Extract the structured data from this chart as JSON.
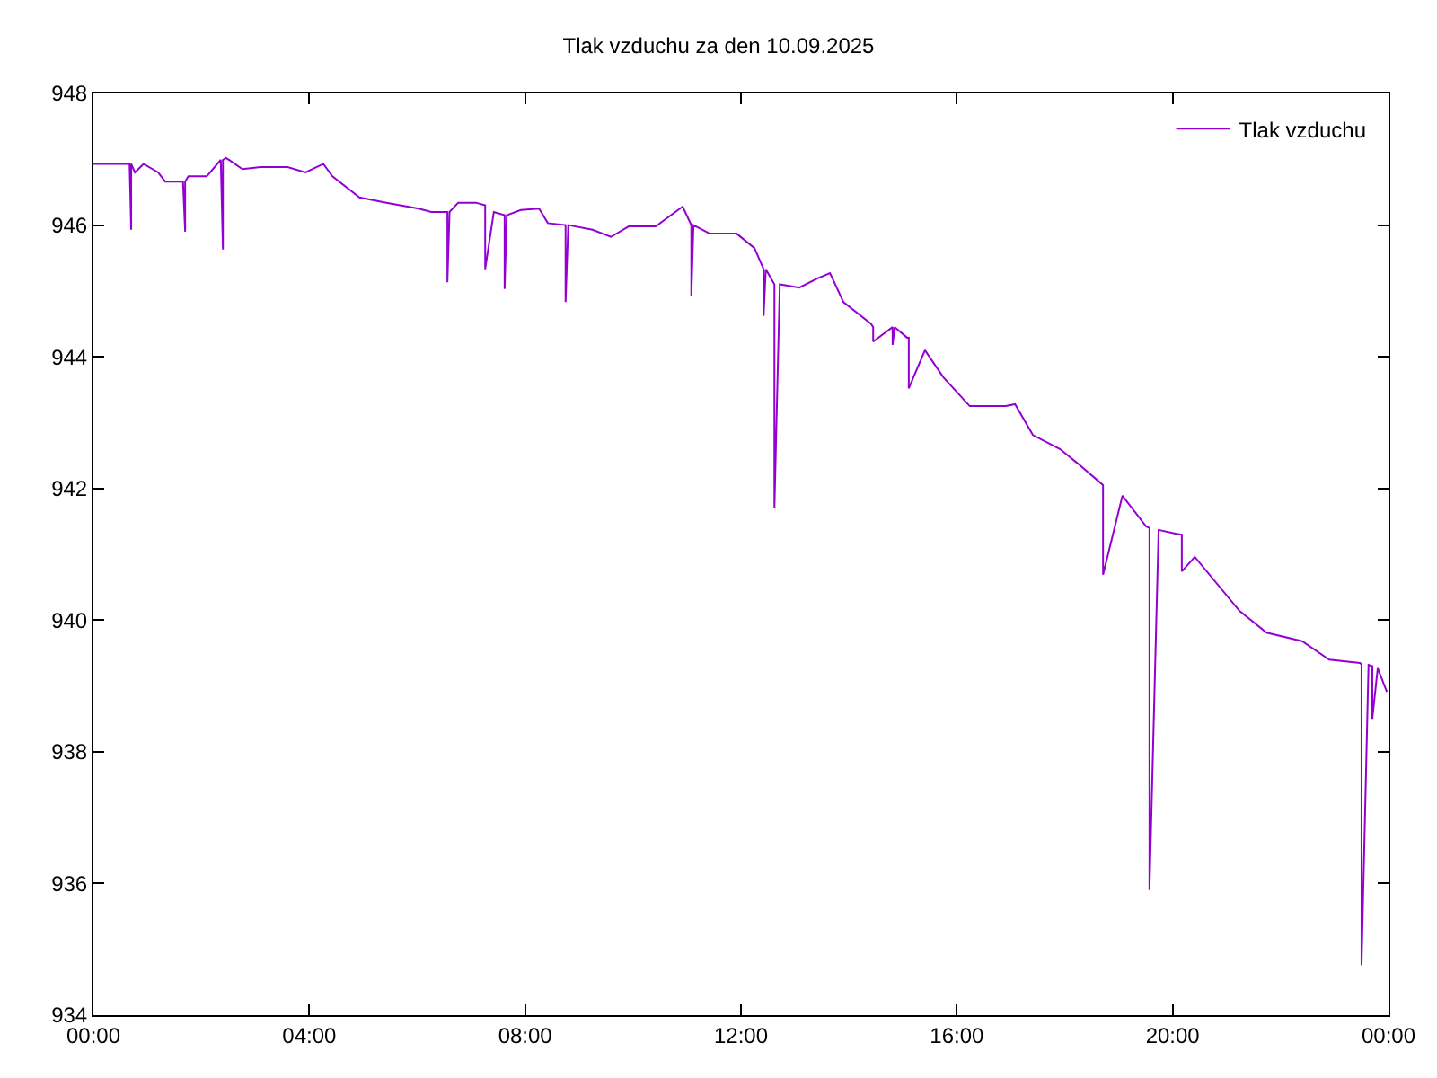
{
  "chart_data": {
    "type": "line",
    "title": "Tlak vzduchu za den 10.09.2025",
    "x": [
      0,
      0.67,
      0.7,
      0.7,
      0.77,
      0.93,
      1.2,
      1.33,
      1.66,
      1.7,
      1.7,
      1.76,
      2.1,
      2.36,
      2.4,
      2.4,
      2.46,
      2.76,
      3.1,
      3.6,
      3.93,
      4.26,
      4.43,
      4.93,
      5.43,
      6.03,
      6.26,
      6.56,
      6.56,
      6.6,
      6.76,
      7.09,
      7.26,
      7.26,
      7.42,
      7.62,
      7.62,
      7.66,
      7.92,
      8.26,
      8.42,
      8.75,
      8.75,
      8.8,
      9.25,
      9.59,
      9.92,
      10.42,
      10.92,
      11.08,
      11.08,
      11.12,
      11.42,
      11.92,
      12.25,
      12.42,
      12.42,
      12.46,
      12.62,
      12.62,
      12.72,
      13.08,
      13.42,
      13.65,
      13.9,
      14.41,
      14.45,
      14.45,
      14.81,
      14.81,
      14.85,
      15.08,
      15.11,
      15.11,
      15.41,
      15.75,
      16.24,
      16.91,
      17.08,
      17.41,
      17.91,
      18.24,
      18.64,
      18.71,
      18.71,
      19.07,
      19.51,
      19.57,
      19.57,
      19.74,
      20.07,
      20.17,
      20.17,
      20.41,
      21.24,
      21.74,
      22.4,
      22.9,
      23.47,
      23.5,
      23.5,
      23.63,
      23.7,
      23.7,
      23.8,
      23.97
    ],
    "series": [
      {
        "name": "Tlak vzduchu",
        "color": "#9400d3",
        "values": [
          946.93,
          946.93,
          945.93,
          946.93,
          946.8,
          946.93,
          946.8,
          946.66,
          946.66,
          945.9,
          946.66,
          946.74,
          946.74,
          946.99,
          945.63,
          946.99,
          947.02,
          946.85,
          946.88,
          946.88,
          946.8,
          946.93,
          946.74,
          946.42,
          946.34,
          946.25,
          946.2,
          946.2,
          945.13,
          946.2,
          946.34,
          946.34,
          946.3,
          945.33,
          946.2,
          946.15,
          945.03,
          946.15,
          946.23,
          946.25,
          946.03,
          946.0,
          944.83,
          946.0,
          945.93,
          945.82,
          945.98,
          945.98,
          946.28,
          946.0,
          944.92,
          946.0,
          945.87,
          945.87,
          945.65,
          945.33,
          944.62,
          945.33,
          945.1,
          941.7,
          945.1,
          945.05,
          945.19,
          945.27,
          944.83,
          944.5,
          944.45,
          944.23,
          944.45,
          944.18,
          944.45,
          944.29,
          944.29,
          943.52,
          944.1,
          943.69,
          943.25,
          943.25,
          943.28,
          942.81,
          942.6,
          942.38,
          942.1,
          942.05,
          940.69,
          941.89,
          941.42,
          941.4,
          935.9,
          941.37,
          941.31,
          941.3,
          940.74,
          940.96,
          940.14,
          939.81,
          939.68,
          939.4,
          939.35,
          939.33,
          934.76,
          939.32,
          939.3,
          938.5,
          939.27,
          938.91
        ]
      }
    ],
    "xlim": [
      0,
      24
    ],
    "xticks": [
      {
        "value": 0,
        "label": "00:00"
      },
      {
        "value": 4,
        "label": "04:00"
      },
      {
        "value": 8,
        "label": "08:00"
      },
      {
        "value": 12,
        "label": "12:00"
      },
      {
        "value": 16,
        "label": "16:00"
      },
      {
        "value": 20,
        "label": "20:00"
      },
      {
        "value": 24,
        "label": "00:00"
      }
    ],
    "ylim": [
      934,
      948
    ],
    "yticks": [
      934,
      936,
      938,
      940,
      942,
      944,
      946,
      948
    ],
    "legend": "top right",
    "marker": "none",
    "line_style": "solid"
  }
}
